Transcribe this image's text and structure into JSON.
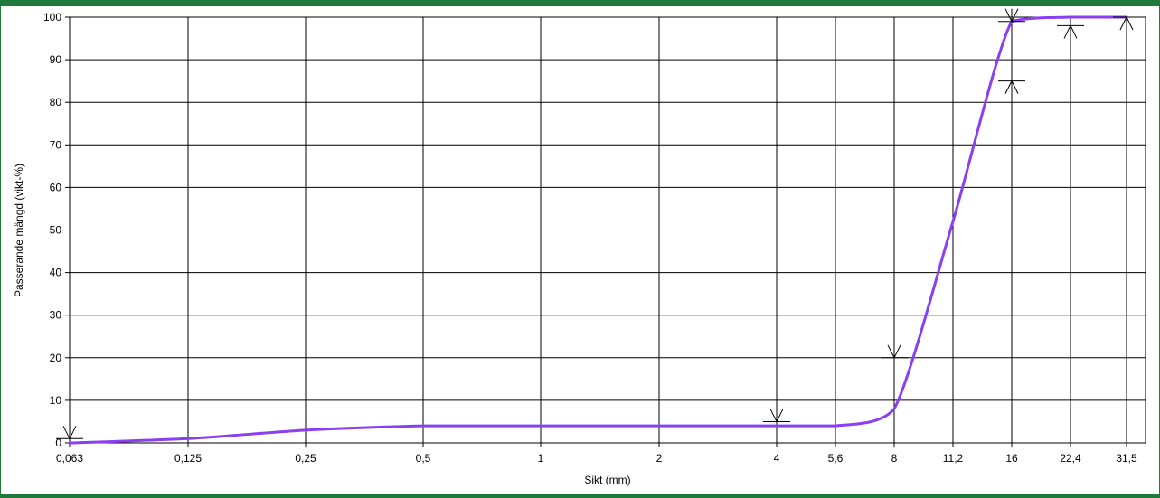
{
  "chart_data": {
    "type": "line",
    "xlabel": "Sikt (mm)",
    "ylabel": "Passerande mängd (vikt-%)",
    "x_scale": "categorical (sieve sizes, log-like spacing)",
    "x_ticks": [
      "0,063",
      "0,125",
      "0,25",
      "0,5",
      "1",
      "2",
      "4",
      "5,6",
      "8",
      "11,2",
      "16",
      "22,4",
      "31,5"
    ],
    "y_ticks": [
      "0",
      "10",
      "20",
      "30",
      "40",
      "50",
      "60",
      "70",
      "80",
      "90",
      "100"
    ],
    "ylim": [
      0,
      100
    ],
    "grid": true,
    "line_color": "#8a3ff0",
    "series": [
      {
        "x": [
          "0,063",
          "0,125",
          "0,25",
          "0,5",
          "1",
          "2",
          "4",
          "5,6",
          "8",
          "11,2",
          "16",
          "22,4",
          "31,5"
        ],
        "values": [
          0,
          1,
          3,
          4,
          4,
          4,
          4,
          4,
          8,
          52,
          99,
          100,
          100
        ]
      }
    ],
    "limit_markers": [
      {
        "x": "0,063",
        "value": 1,
        "direction": "upper"
      },
      {
        "x": "4",
        "value": 5,
        "direction": "upper"
      },
      {
        "x": "8",
        "value": 20,
        "direction": "upper"
      },
      {
        "x": "16",
        "value": 85,
        "direction": "lower"
      },
      {
        "x": "16",
        "value": 99,
        "direction": "upper"
      },
      {
        "x": "22,4",
        "value": 98,
        "direction": "lower"
      },
      {
        "x": "31,5",
        "value": 100,
        "direction": "lower"
      }
    ]
  }
}
